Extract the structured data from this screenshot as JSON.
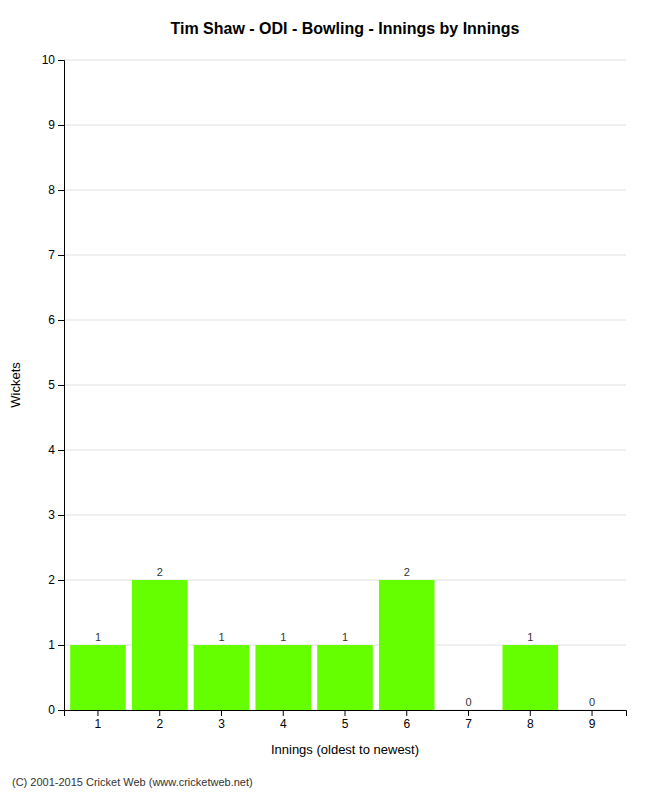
{
  "chart_data": {
    "type": "bar",
    "title": "Tim Shaw - ODI - Bowling - Innings by Innings",
    "xlabel": "Innings (oldest to newest)",
    "ylabel": "Wickets",
    "categories": [
      1,
      2,
      3,
      4,
      5,
      6,
      7,
      8,
      9
    ],
    "values": [
      1,
      2,
      1,
      1,
      1,
      2,
      0,
      1,
      0
    ],
    "color": "#66ff00",
    "ylim": [
      0,
      10
    ],
    "yticks": [
      0,
      1,
      2,
      3,
      4,
      5,
      6,
      7,
      8,
      9,
      10
    ],
    "grid": true,
    "data_labels": true,
    "annotations": [
      "(C) 2001-2015 Cricket Web (www.cricketweb.net)"
    ]
  }
}
